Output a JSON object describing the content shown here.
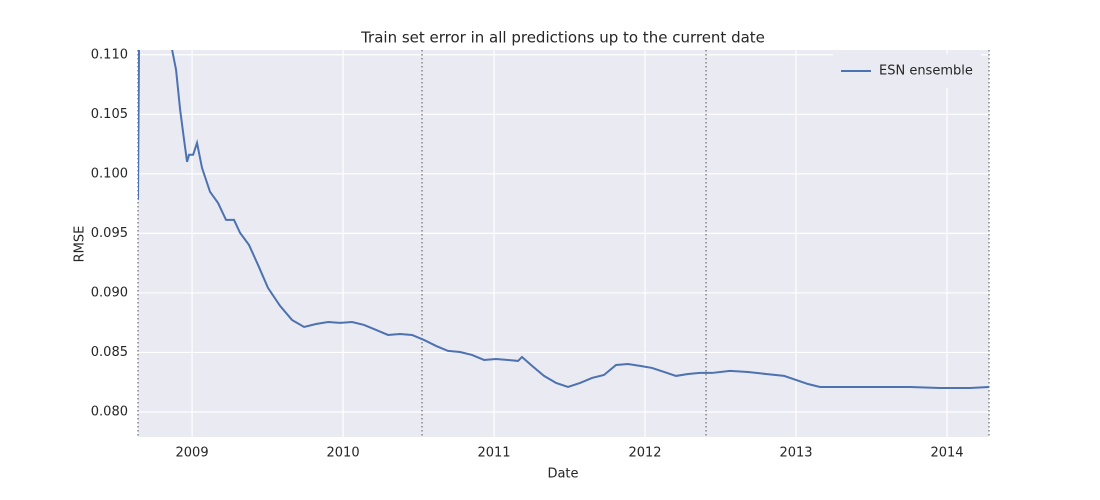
{
  "chart_data": {
    "type": "line",
    "title": "Train set error in all predictions up to the current date",
    "xlabel": "Date",
    "ylabel": "RMSE",
    "x": [
      2008.642,
      2008.656,
      2008.868,
      2008.894,
      2008.921,
      2008.947,
      2008.967,
      2008.98,
      2009.007,
      2009.033,
      2009.066,
      2009.119,
      2009.172,
      2009.225,
      2009.278,
      2009.318,
      2009.377,
      2009.437,
      2009.503,
      2009.583,
      2009.662,
      2009.742,
      2009.821,
      2009.901,
      2009.98,
      2010.06,
      2010.139,
      2010.219,
      2010.298,
      2010.377,
      2010.457,
      2010.536,
      2010.616,
      2010.695,
      2010.775,
      2010.854,
      2010.934,
      2011.013,
      2011.093,
      2011.159,
      2011.185,
      2011.252,
      2011.331,
      2011.411,
      2011.49,
      2011.57,
      2011.649,
      2011.728,
      2011.808,
      2011.887,
      2011.967,
      2012.046,
      2012.126,
      2012.205,
      2012.285,
      2012.364,
      2012.444,
      2012.563,
      2012.682,
      2012.801,
      2012.921,
      2013.0,
      2013.079,
      2013.159,
      2013.358,
      2013.556,
      2013.755,
      2013.954,
      2014.152,
      2014.278
    ],
    "series": [
      {
        "name": "ESN ensemble",
        "color": "#4c72b0",
        "values": [
          0.09782,
          0.125,
          0.1104,
          0.10874,
          0.10538,
          0.10286,
          0.10101,
          0.1016,
          0.1016,
          0.1026,
          0.1005,
          0.09849,
          0.09756,
          0.09613,
          0.09613,
          0.09504,
          0.09403,
          0.09235,
          0.09042,
          0.08891,
          0.08773,
          0.08714,
          0.08739,
          0.08756,
          0.08748,
          0.08756,
          0.08731,
          0.08689,
          0.08647,
          0.08655,
          0.08647,
          0.08605,
          0.08555,
          0.08513,
          0.08504,
          0.08479,
          0.08437,
          0.08445,
          0.08437,
          0.08429,
          0.08462,
          0.08387,
          0.08303,
          0.08244,
          0.0821,
          0.08244,
          0.08286,
          0.08311,
          0.08395,
          0.08403,
          0.08387,
          0.0837,
          0.08336,
          0.08303,
          0.08319,
          0.08328,
          0.08328,
          0.08345,
          0.08336,
          0.08319,
          0.08303,
          0.08269,
          0.08235,
          0.0821,
          0.0821,
          0.0821,
          0.0821,
          0.08202,
          0.08202,
          0.0821
        ]
      }
    ],
    "xlim": [
      2008.642,
      2014.278
    ],
    "ylim": [
      0.0779,
      0.1104
    ],
    "xticks": [
      2009,
      2010,
      2011,
      2012,
      2013,
      2014
    ],
    "yticks": [
      {
        "value": 0.08,
        "label": "0.080"
      },
      {
        "value": 0.085,
        "label": "0.085"
      },
      {
        "value": 0.09,
        "label": "0.090"
      },
      {
        "value": 0.095,
        "label": "0.095"
      },
      {
        "value": 0.1,
        "label": "0.100"
      },
      {
        "value": 0.105,
        "label": "0.105"
      },
      {
        "value": 0.11,
        "label": "0.110"
      }
    ],
    "vlines": [
      2008.642,
      2010.523,
      2012.404,
      2014.278
    ],
    "grid": true,
    "legend": "upper right",
    "background": "#eaeaf2"
  }
}
